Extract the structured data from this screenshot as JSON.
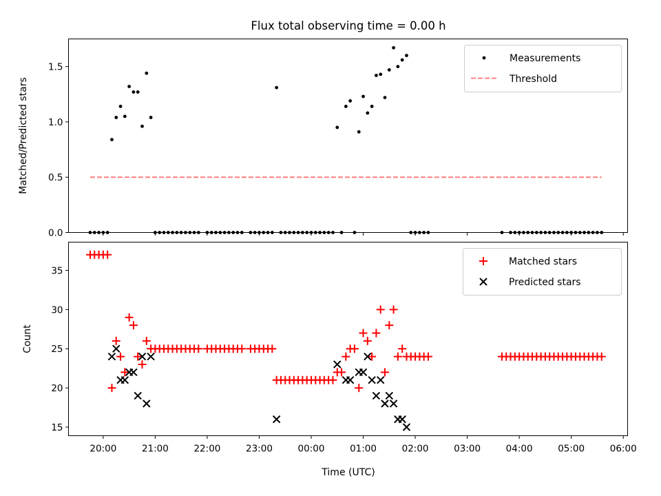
{
  "chart_data": [
    {
      "type": "scatter",
      "title": "Flux total observing time = 0.00 h",
      "xlabel": "",
      "ylabel": "Matched/Predicted stars",
      "ylim": [
        0,
        1.75
      ],
      "xlim": [
        "19:20",
        "06:05"
      ],
      "yticks": [
        "0.0",
        "0.5",
        "1.0",
        "1.5"
      ],
      "grid": false,
      "legend_position": "top-right",
      "series": [
        {
          "name": "Measurements",
          "marker": "dot",
          "color": "#000000",
          "points": [
            [
              "19:45",
              0
            ],
            [
              "19:50",
              0
            ],
            [
              "19:55",
              0
            ],
            [
              "20:00",
              0
            ],
            [
              "20:05",
              0
            ],
            [
              "20:10",
              0.84
            ],
            [
              "20:15",
              1.04
            ],
            [
              "20:20",
              1.14
            ],
            [
              "20:25",
              1.05
            ],
            [
              "20:30",
              1.32
            ],
            [
              "20:35",
              1.27
            ],
            [
              "20:40",
              1.27
            ],
            [
              "20:45",
              0.96
            ],
            [
              "20:50",
              1.44
            ],
            [
              "20:55",
              1.04
            ],
            [
              "21:00",
              0
            ],
            [
              "21:05",
              0
            ],
            [
              "21:10",
              0
            ],
            [
              "21:15",
              0
            ],
            [
              "21:20",
              0
            ],
            [
              "21:25",
              0
            ],
            [
              "21:30",
              0
            ],
            [
              "21:35",
              0
            ],
            [
              "21:40",
              0
            ],
            [
              "21:45",
              0
            ],
            [
              "21:50",
              0
            ],
            [
              "22:00",
              0
            ],
            [
              "22:05",
              0
            ],
            [
              "22:10",
              0
            ],
            [
              "22:15",
              0
            ],
            [
              "22:20",
              0
            ],
            [
              "22:25",
              0
            ],
            [
              "22:30",
              0
            ],
            [
              "22:35",
              0
            ],
            [
              "22:40",
              0
            ],
            [
              "22:50",
              0
            ],
            [
              "22:55",
              0
            ],
            [
              "23:00",
              0
            ],
            [
              "23:05",
              0
            ],
            [
              "23:10",
              0
            ],
            [
              "23:15",
              0
            ],
            [
              "23:20",
              1.31
            ],
            [
              "23:25",
              0
            ],
            [
              "23:30",
              0
            ],
            [
              "23:35",
              0
            ],
            [
              "23:40",
              0
            ],
            [
              "23:45",
              0
            ],
            [
              "23:50",
              0
            ],
            [
              "23:55",
              0
            ],
            [
              "00:00",
              0
            ],
            [
              "00:05",
              0
            ],
            [
              "00:10",
              0
            ],
            [
              "00:15",
              0
            ],
            [
              "00:20",
              0
            ],
            [
              "00:25",
              0
            ],
            [
              "00:35",
              0
            ],
            [
              "00:50",
              0
            ],
            [
              "00:30",
              0.95
            ],
            [
              "00:40",
              1.14
            ],
            [
              "00:45",
              1.19
            ],
            [
              "00:55",
              0.91
            ],
            [
              "01:00",
              1.23
            ],
            [
              "01:05",
              1.08
            ],
            [
              "01:10",
              1.14
            ],
            [
              "01:15",
              1.42
            ],
            [
              "01:20",
              1.43
            ],
            [
              "01:25",
              1.22
            ],
            [
              "01:30",
              1.47
            ],
            [
              "01:35",
              1.67
            ],
            [
              "01:40",
              1.5
            ],
            [
              "01:45",
              1.56
            ],
            [
              "01:50",
              1.6
            ],
            [
              "01:55",
              0
            ],
            [
              "02:00",
              0
            ],
            [
              "02:05",
              0
            ],
            [
              "02:10",
              0
            ],
            [
              "02:15",
              0
            ],
            [
              "03:40",
              0
            ],
            [
              "03:50",
              0
            ],
            [
              "03:55",
              0
            ],
            [
              "04:00",
              0
            ],
            [
              "04:05",
              0
            ],
            [
              "04:10",
              0
            ],
            [
              "04:15",
              0
            ],
            [
              "04:20",
              0
            ],
            [
              "04:25",
              0
            ],
            [
              "04:30",
              0
            ],
            [
              "04:35",
              0
            ],
            [
              "04:40",
              0
            ],
            [
              "04:45",
              0
            ],
            [
              "04:50",
              0
            ],
            [
              "04:55",
              0
            ],
            [
              "05:00",
              0
            ],
            [
              "05:05",
              0
            ],
            [
              "05:10",
              0
            ],
            [
              "05:15",
              0
            ],
            [
              "05:20",
              0
            ],
            [
              "05:25",
              0
            ],
            [
              "05:30",
              0
            ],
            [
              "05:35",
              0
            ]
          ]
        },
        {
          "name": "Threshold",
          "marker": "dashed-line",
          "color": "#ff7f7f",
          "points": [
            [
              "19:45",
              0.5
            ],
            [
              "05:35",
              0.5
            ]
          ]
        }
      ]
    },
    {
      "type": "scatter",
      "title": "",
      "xlabel": "Time (UTC)",
      "ylabel": "Count",
      "ylim": [
        13.9,
        38.6
      ],
      "xlim": [
        "19:20",
        "06:05"
      ],
      "xticks": [
        "20:00",
        "21:00",
        "22:00",
        "23:00",
        "00:00",
        "01:00",
        "02:00",
        "03:00",
        "04:00",
        "05:00",
        "06:00"
      ],
      "yticks": [
        "15",
        "20",
        "25",
        "30",
        "35"
      ],
      "grid": false,
      "legend_position": "top-right",
      "series": [
        {
          "name": "Matched stars",
          "marker": "plus",
          "color": "#ff0000",
          "points": [
            [
              "19:45",
              37
            ],
            [
              "19:50",
              37
            ],
            [
              "19:55",
              37
            ],
            [
              "20:00",
              37
            ],
            [
              "20:05",
              37
            ],
            [
              "20:10",
              20
            ],
            [
              "20:15",
              26
            ],
            [
              "20:20",
              24
            ],
            [
              "20:25",
              22
            ],
            [
              "20:30",
              29
            ],
            [
              "20:35",
              28
            ],
            [
              "20:40",
              24
            ],
            [
              "20:45",
              23
            ],
            [
              "20:50",
              26
            ],
            [
              "20:55",
              25
            ],
            [
              "21:00",
              25
            ],
            [
              "21:05",
              25
            ],
            [
              "21:10",
              25
            ],
            [
              "21:15",
              25
            ],
            [
              "21:20",
              25
            ],
            [
              "21:25",
              25
            ],
            [
              "21:30",
              25
            ],
            [
              "21:35",
              25
            ],
            [
              "21:40",
              25
            ],
            [
              "21:45",
              25
            ],
            [
              "21:50",
              25
            ],
            [
              "22:00",
              25
            ],
            [
              "22:05",
              25
            ],
            [
              "22:10",
              25
            ],
            [
              "22:15",
              25
            ],
            [
              "22:20",
              25
            ],
            [
              "22:25",
              25
            ],
            [
              "22:30",
              25
            ],
            [
              "22:35",
              25
            ],
            [
              "22:40",
              25
            ],
            [
              "22:50",
              25
            ],
            [
              "22:55",
              25
            ],
            [
              "23:00",
              25
            ],
            [
              "23:05",
              25
            ],
            [
              "23:10",
              25
            ],
            [
              "23:15",
              25
            ],
            [
              "23:20",
              21
            ],
            [
              "23:25",
              21
            ],
            [
              "23:30",
              21
            ],
            [
              "23:35",
              21
            ],
            [
              "23:40",
              21
            ],
            [
              "23:45",
              21
            ],
            [
              "23:50",
              21
            ],
            [
              "23:55",
              21
            ],
            [
              "00:00",
              21
            ],
            [
              "00:05",
              21
            ],
            [
              "00:10",
              21
            ],
            [
              "00:15",
              21
            ],
            [
              "00:20",
              21
            ],
            [
              "00:25",
              21
            ],
            [
              "00:30",
              22
            ],
            [
              "00:35",
              22
            ],
            [
              "00:40",
              24
            ],
            [
              "00:45",
              25
            ],
            [
              "00:50",
              25
            ],
            [
              "00:55",
              20
            ],
            [
              "01:00",
              27
            ],
            [
              "01:05",
              26
            ],
            [
              "01:10",
              24
            ],
            [
              "01:15",
              27
            ],
            [
              "01:20",
              30
            ],
            [
              "01:25",
              22
            ],
            [
              "01:30",
              28
            ],
            [
              "01:35",
              30
            ],
            [
              "01:40",
              24
            ],
            [
              "01:45",
              25
            ],
            [
              "01:50",
              24
            ],
            [
              "01:55",
              24
            ],
            [
              "02:00",
              24
            ],
            [
              "02:05",
              24
            ],
            [
              "02:10",
              24
            ],
            [
              "02:15",
              24
            ],
            [
              "03:40",
              24
            ],
            [
              "03:45",
              24
            ],
            [
              "03:50",
              24
            ],
            [
              "03:55",
              24
            ],
            [
              "04:00",
              24
            ],
            [
              "04:05",
              24
            ],
            [
              "04:10",
              24
            ],
            [
              "04:15",
              24
            ],
            [
              "04:20",
              24
            ],
            [
              "04:25",
              24
            ],
            [
              "04:30",
              24
            ],
            [
              "04:35",
              24
            ],
            [
              "04:40",
              24
            ],
            [
              "04:45",
              24
            ],
            [
              "04:50",
              24
            ],
            [
              "04:55",
              24
            ],
            [
              "05:00",
              24
            ],
            [
              "05:05",
              24
            ],
            [
              "05:10",
              24
            ],
            [
              "05:15",
              24
            ],
            [
              "05:20",
              24
            ],
            [
              "05:25",
              24
            ],
            [
              "05:30",
              24
            ],
            [
              "05:35",
              24
            ]
          ]
        },
        {
          "name": "Predicted stars",
          "marker": "x",
          "color": "#000000",
          "points": [
            [
              "20:10",
              24
            ],
            [
              "20:15",
              25
            ],
            [
              "20:20",
              21
            ],
            [
              "20:25",
              21
            ],
            [
              "20:30",
              22
            ],
            [
              "20:35",
              22
            ],
            [
              "20:40",
              19
            ],
            [
              "20:45",
              24
            ],
            [
              "20:50",
              18
            ],
            [
              "20:55",
              24
            ],
            [
              "23:20",
              16
            ],
            [
              "00:30",
              23
            ],
            [
              "00:40",
              21
            ],
            [
              "00:45",
              21
            ],
            [
              "00:55",
              22
            ],
            [
              "01:00",
              22
            ],
            [
              "01:05",
              24
            ],
            [
              "01:10",
              21
            ],
            [
              "01:15",
              19
            ],
            [
              "01:20",
              21
            ],
            [
              "01:25",
              18
            ],
            [
              "01:30",
              19
            ],
            [
              "01:35",
              18
            ],
            [
              "01:40",
              16
            ],
            [
              "01:45",
              16
            ],
            [
              "01:50",
              15
            ]
          ]
        }
      ]
    }
  ]
}
